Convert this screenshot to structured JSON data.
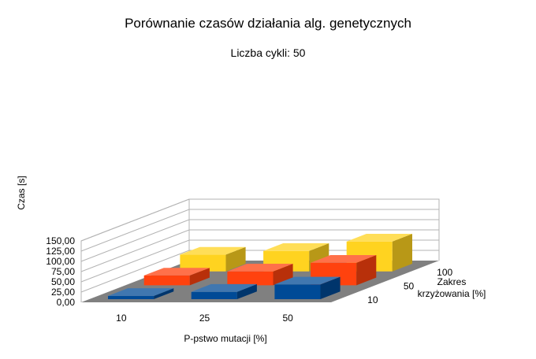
{
  "chart_data": {
    "type": "bar",
    "subtype": "3d-column",
    "title": "Porównanie czasów działania alg. genetycznych",
    "subtitle": "Liczba cykli: 50",
    "xlabel": "P-pstwo mutacji  [%]",
    "ylabel": "Czas [s]",
    "zlabel": "Zakres krzyżowania [%]",
    "zlabel_lines": [
      "Zakres",
      "krzyżowania [%]"
    ],
    "categories": [
      "10",
      "25",
      "50"
    ],
    "depth_categories": [
      "10",
      "50",
      "100"
    ],
    "ylim": [
      0,
      150
    ],
    "y_ticks": [
      "0,00",
      "25,00",
      "50,00",
      "75,00",
      "100,00",
      "125,00",
      "150,00"
    ],
    "grid": true,
    "series": [
      {
        "name": "10",
        "values": [
          8,
          18,
          36
        ],
        "color": "#004a96"
      },
      {
        "name": "50",
        "values": [
          24,
          34,
          55
        ],
        "color": "#ff420e"
      },
      {
        "name": "100",
        "values": [
          41,
          50,
          73
        ],
        "color": "#ffd320"
      }
    ],
    "colors": {
      "floor": "#808080",
      "grid": "#b3b3b3"
    }
  }
}
